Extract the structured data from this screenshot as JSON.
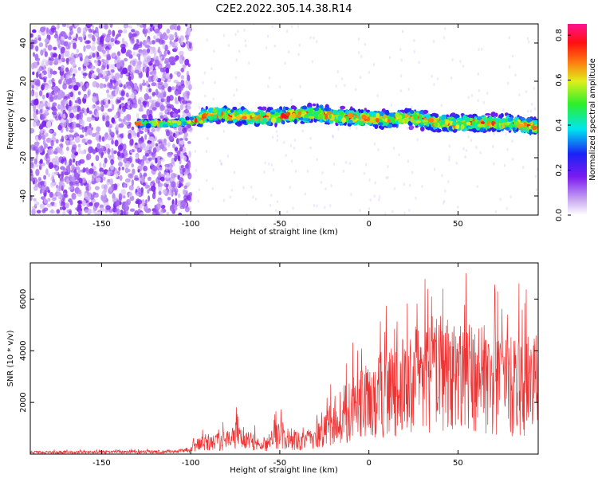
{
  "title": "C2E2.2022.305.14.38.R14",
  "chart_data": [
    {
      "type": "heatmap",
      "xlabel": "Height of straight line (km)",
      "ylabel": "Frequency (Hz)",
      "xlim": [
        -190,
        95
      ],
      "ylim": [
        -50,
        50
      ],
      "xticks": [
        -150,
        -100,
        -50,
        0,
        50
      ],
      "yticks": [
        -40,
        -20,
        0,
        20,
        40
      ],
      "colorbar": {
        "label": "Normalized spectral amplitude",
        "range": [
          0,
          0.85
        ],
        "ticks": [
          "0.0",
          "0.2",
          "0.4",
          "0.6",
          "0.8"
        ],
        "colormap": "white-purple-blue-cyan-green-yellow-red-magenta"
      },
      "ridge": {
        "description_x_range": [
          -130,
          95
        ],
        "center_frequency_points": [
          {
            "x": -130,
            "y": -2
          },
          {
            "x": -110,
            "y": -2
          },
          {
            "x": -95,
            "y": 0
          },
          {
            "x": -90,
            "y": 3
          },
          {
            "x": -75,
            "y": 2
          },
          {
            "x": -60,
            "y": 1
          },
          {
            "x": -45,
            "y": 2
          },
          {
            "x": -30,
            "y": 3
          },
          {
            "x": -10,
            "y": 1
          },
          {
            "x": 10,
            "y": 0
          },
          {
            "x": 25,
            "y": 1
          },
          {
            "x": 40,
            "y": -2
          },
          {
            "x": 60,
            "y": -2
          },
          {
            "x": 80,
            "y": -2
          },
          {
            "x": 95,
            "y": -4
          }
        ]
      },
      "noise_region_x_range": [
        -190,
        -100
      ]
    },
    {
      "type": "line",
      "xlabel": "Height of straight line (km)",
      "ylabel": "SNR (10 * v/v)",
      "xlim": [
        -190,
        95
      ],
      "ylim": [
        0,
        7400
      ],
      "xticks": [
        -150,
        -100,
        -50,
        0,
        50
      ],
      "yticks": [
        2000,
        4000,
        6000
      ],
      "color": "#ee3333",
      "envelope": [
        {
          "x": -190,
          "y": 120
        },
        {
          "x": -120,
          "y": 150
        },
        {
          "x": -105,
          "y": 200
        },
        {
          "x": -100,
          "y": 300
        },
        {
          "x": -95,
          "y": 750
        },
        {
          "x": -80,
          "y": 900
        },
        {
          "x": -75,
          "y": 1300
        },
        {
          "x": -60,
          "y": 600
        },
        {
          "x": -50,
          "y": 1300
        },
        {
          "x": -40,
          "y": 900
        },
        {
          "x": -30,
          "y": 1000
        },
        {
          "x": -20,
          "y": 2200
        },
        {
          "x": -10,
          "y": 3000
        },
        {
          "x": 0,
          "y": 3600
        },
        {
          "x": 10,
          "y": 4200
        },
        {
          "x": 20,
          "y": 4500
        },
        {
          "x": 30,
          "y": 5300
        },
        {
          "x": 40,
          "y": 5500
        },
        {
          "x": 50,
          "y": 5000
        },
        {
          "x": 60,
          "y": 5200
        },
        {
          "x": 70,
          "y": 4800
        },
        {
          "x": 80,
          "y": 4600
        },
        {
          "x": 95,
          "y": 4600
        }
      ]
    }
  ]
}
